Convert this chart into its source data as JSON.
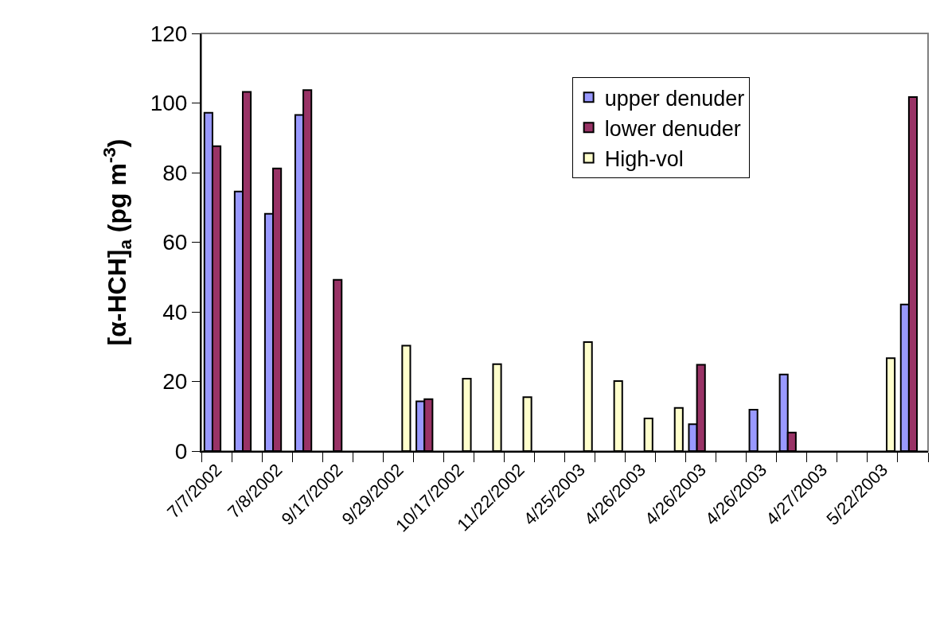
{
  "chart_data": {
    "type": "bar",
    "ylabel": "[α-HCH]$_{a}$ (pg m$^{-3}$)",
    "categories": [
      "7/7/2002",
      null,
      "7/8/2002",
      null,
      "9/17/2002",
      null,
      "9/29/2002",
      null,
      "10/17/2002",
      null,
      "11/22/2002",
      null,
      "4/25/2003",
      null,
      "4/26/2003",
      null,
      "4/26/2003",
      null,
      "4/26/2003",
      null,
      "4/27/2003",
      null,
      "5/22/2003",
      null
    ],
    "series": [
      {
        "name": "upper denuder",
        "color": "#9999ff",
        "values": [
          97.2,
          74.6,
          68.2,
          96.6,
          null,
          null,
          null,
          14.3,
          null,
          null,
          null,
          null,
          null,
          null,
          null,
          null,
          7.7,
          null,
          11.9,
          22.0,
          null,
          null,
          null,
          42.1
        ]
      },
      {
        "name": "lower denuder",
        "color": "#993366",
        "values": [
          87.6,
          103.2,
          81.2,
          103.7,
          49.2,
          null,
          null,
          14.9,
          null,
          null,
          null,
          null,
          null,
          null,
          null,
          null,
          24.8,
          null,
          null,
          5.3,
          null,
          null,
          null,
          101.7
        ]
      },
      {
        "name": "High-vol",
        "color": "#ffffcc",
        "values": [
          null,
          null,
          null,
          null,
          null,
          null,
          30.3,
          null,
          20.8,
          25.0,
          15.5,
          null,
          31.3,
          20.1,
          9.4,
          12.4,
          null,
          null,
          null,
          null,
          null,
          null,
          26.7,
          null
        ]
      }
    ],
    "ylim": [
      0,
      120
    ],
    "yticks": [
      0,
      20,
      40,
      60,
      80,
      100,
      120
    ],
    "grid": false,
    "legend": "top right"
  }
}
